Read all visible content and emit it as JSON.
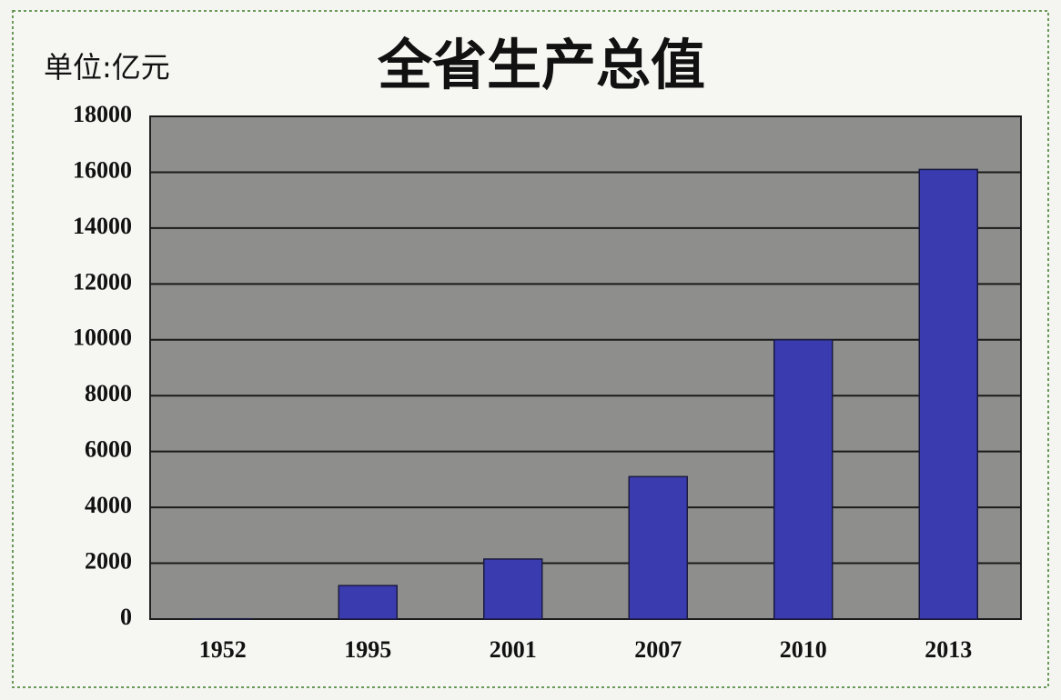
{
  "chart_data": {
    "type": "bar",
    "title": "全省生产总值",
    "y_label": "单位:亿元",
    "categories": [
      "1952",
      "1995",
      "2001",
      "2007",
      "2010",
      "2013"
    ],
    "values": [
      10,
      1200,
      2150,
      5100,
      10000,
      16100
    ],
    "color": "#3b3bb0",
    "ylim": [
      0,
      18000
    ],
    "yticks": [
      0,
      2000,
      4000,
      6000,
      8000,
      10000,
      12000,
      14000,
      16000,
      18000
    ],
    "grid": true
  }
}
